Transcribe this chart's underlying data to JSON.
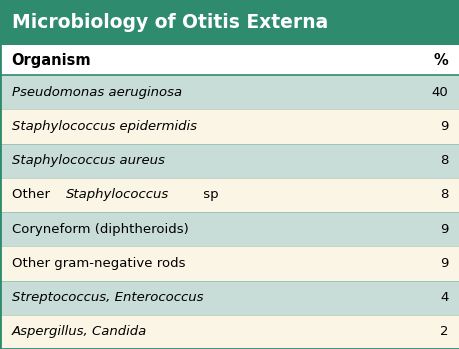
{
  "title": "Microbiology of Otitis Externa",
  "title_bg": "#2E8B6E",
  "title_color": "#FFFFFF",
  "header_col1": "Organism",
  "header_col2": "%",
  "header_bg": "#FFFFFF",
  "header_color": "#000000",
  "rows": [
    {
      "organism": "Pseudomonas aeruginosa",
      "italic": true,
      "italic_part": null,
      "value": "40",
      "bg": "#C8DDD8"
    },
    {
      "organism": "Staphylococcus epidermidis",
      "italic": true,
      "italic_part": null,
      "value": "9",
      "bg": "#FAF5E4"
    },
    {
      "organism": "Staphylococcus aureus",
      "italic": true,
      "italic_part": null,
      "value": "8",
      "bg": "#C8DDD8"
    },
    {
      "organism": "Other Staphylococcus sp",
      "italic": false,
      "italic_part": "Staphylococcus",
      "value": "8",
      "bg": "#FAF5E4"
    },
    {
      "organism": "Coryneform (diphtheroids)",
      "italic": false,
      "italic_part": null,
      "value": "9",
      "bg": "#C8DDD8"
    },
    {
      "organism": "Other gram-negative rods",
      "italic": false,
      "italic_part": null,
      "value": "9",
      "bg": "#FAF5E4"
    },
    {
      "organism": "Streptococcus, Enterococcus",
      "italic": true,
      "italic_part": null,
      "value": "4",
      "bg": "#C8DDD8"
    },
    {
      "organism": "Aspergillus, Candida",
      "italic": true,
      "italic_part": null,
      "value": "2",
      "bg": "#FAF5E4"
    }
  ],
  "border_color": "#2E8B6E",
  "text_color": "#000000",
  "figsize": [
    4.6,
    3.49
  ],
  "dpi": 100
}
